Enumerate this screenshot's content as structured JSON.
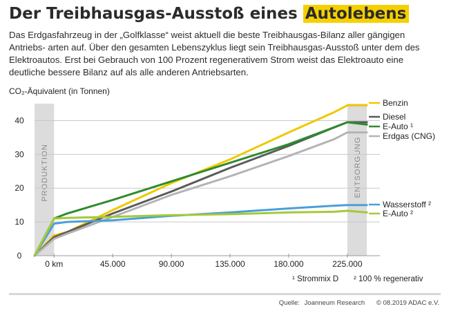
{
  "header": {
    "title_main": "Der Treibhausgas-Ausstoß eines",
    "title_highlight": "Autolebens",
    "subtitle": "Das Erdgasfahrzeug in der „Golfklasse“ weist aktuell die beste Treibhausgas-Bilanz aller gängigen Antriebs- arten auf. Über den gesamten Lebenszyklus liegt sein Treibhausgas-Ausstoß unter dem des Elektroautos. Erst bei Gebrauch von 100 Prozent regenerativem Strom weist das Elektroauto eine deutliche bessere Bilanz auf als alle anderen Antriebsarten."
  },
  "chart_data": {
    "type": "line",
    "ylabel": "CO₂-Äquivalent (in Tonnen)",
    "xlabel": "",
    "ylim": [
      0,
      45
    ],
    "xlim": [
      -15000,
      250000
    ],
    "yticks": [
      0,
      10,
      20,
      30,
      40
    ],
    "xticks": [
      {
        "value": 0,
        "label": "0 km"
      },
      {
        "value": 45000,
        "label": "45.000"
      },
      {
        "value": 90000,
        "label": "90.000"
      },
      {
        "value": 135000,
        "label": "135.000"
      },
      {
        "value": 180000,
        "label": "180.000"
      },
      {
        "value": 225000,
        "label": "225.000"
      }
    ],
    "bands": [
      {
        "label": "PRODUKTION",
        "from": -15000,
        "to": 0
      },
      {
        "label": "ENTSORGUNG",
        "from": 225000,
        "to": 240000
      }
    ],
    "grid": true,
    "series": [
      {
        "name": "Benzin",
        "color": "#f0c800",
        "points": [
          [
            -15000,
            0
          ],
          [
            0,
            6
          ],
          [
            10000,
            7
          ],
          [
            45000,
            13.5
          ],
          [
            90000,
            21.5
          ],
          [
            135000,
            28.5
          ],
          [
            180000,
            36.5
          ],
          [
            215000,
            42.5
          ],
          [
            225000,
            44.5
          ],
          [
            240000,
            44.5
          ]
        ]
      },
      {
        "name": "Diesel",
        "color": "#5a5a5a",
        "points": [
          [
            -15000,
            0
          ],
          [
            0,
            5.5
          ],
          [
            10000,
            7
          ],
          [
            45000,
            12.5
          ],
          [
            90000,
            19
          ],
          [
            135000,
            26
          ],
          [
            180000,
            32.5
          ],
          [
            215000,
            38
          ],
          [
            225000,
            39.5
          ],
          [
            240000,
            39.5
          ]
        ]
      },
      {
        "name": "E-Auto ¹",
        "color": "#2e8b2e",
        "points": [
          [
            -15000,
            0
          ],
          [
            0,
            11
          ],
          [
            10000,
            12.5
          ],
          [
            45000,
            16.5
          ],
          [
            90000,
            22
          ],
          [
            135000,
            27.5
          ],
          [
            180000,
            33
          ],
          [
            215000,
            38
          ],
          [
            225000,
            39.5
          ],
          [
            240000,
            38.8
          ]
        ]
      },
      {
        "name": "Erdgas (CNG)",
        "color": "#b4b4b4",
        "points": [
          [
            -15000,
            0
          ],
          [
            0,
            5
          ],
          [
            10000,
            6.5
          ],
          [
            45000,
            11.5
          ],
          [
            90000,
            18
          ],
          [
            135000,
            23.5
          ],
          [
            180000,
            29.5
          ],
          [
            215000,
            34.5
          ],
          [
            225000,
            36.5
          ],
          [
            240000,
            36.5
          ]
        ]
      },
      {
        "name": "Wasserstoff ²",
        "color": "#4a9fd8",
        "points": [
          [
            -15000,
            0
          ],
          [
            0,
            9.5
          ],
          [
            10000,
            10
          ],
          [
            45000,
            10.5
          ],
          [
            90000,
            11.8
          ],
          [
            135000,
            12.8
          ],
          [
            180000,
            14
          ],
          [
            215000,
            14.8
          ],
          [
            225000,
            15
          ],
          [
            240000,
            15
          ]
        ]
      },
      {
        "name": "E-Auto ²",
        "color": "#a4c93a",
        "points": [
          [
            -15000,
            0
          ],
          [
            0,
            11
          ],
          [
            10000,
            11.2
          ],
          [
            45000,
            11.5
          ],
          [
            90000,
            12
          ],
          [
            135000,
            12.3
          ],
          [
            180000,
            12.8
          ],
          [
            215000,
            13
          ],
          [
            225000,
            13.3
          ],
          [
            240000,
            12.8
          ]
        ]
      }
    ],
    "footnotes": [
      "¹ Strommix D",
      "² 100 % regenerativ"
    ]
  },
  "footer": {
    "source_label": "Quelle:",
    "source": "Joanneum Research",
    "copyright": "© 08.2019 ADAC e.V."
  }
}
